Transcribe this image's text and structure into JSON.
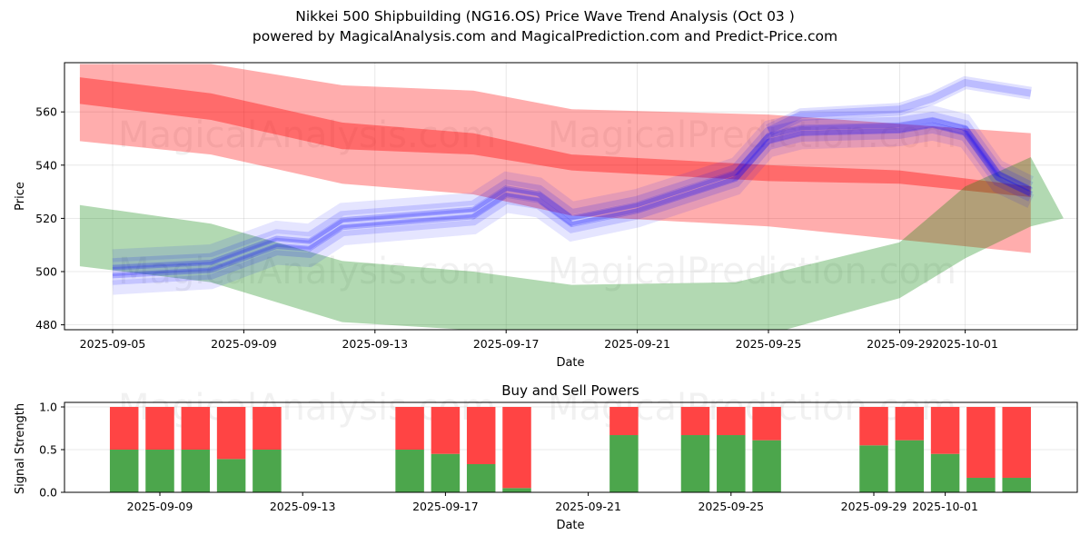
{
  "header": {
    "title": "Nikkei 500 Shipbuilding (NG16.OS) Price Wave Trend Analysis (Oct 03 )",
    "subtitle": "powered by MagicalAnalysis.com and MagicalPrediction.com and Predict-Price.com"
  },
  "watermarks": [
    "MagicalAnalysis.com",
    "MagicalPrediction.com"
  ],
  "chart_data": [
    {
      "type": "area",
      "title": "",
      "xlabel": "Date",
      "ylabel": "Price",
      "ylim": [
        478,
        578
      ],
      "xlim": [
        "2025-09-03.6",
        "2025-10-04.8"
      ],
      "x_ticks": [
        "2025-09-05",
        "2025-09-09",
        "2025-09-13",
        "2025-09-17",
        "2025-09-21",
        "2025-09-25",
        "2025-09-29",
        "2025-10-01"
      ],
      "y_ticks": [
        480,
        500,
        520,
        540,
        560
      ],
      "grid": true,
      "colors": {
        "red": "#ff0000",
        "green": "#008000",
        "blue": "#0000ff"
      },
      "bands": [
        {
          "name": "red-outer-band",
          "color": "#ff0000",
          "opacity": 0.32,
          "x": [
            "2025-09-04",
            "2025-09-08",
            "2025-09-12",
            "2025-09-16",
            "2025-09-19",
            "2025-09-25",
            "2025-10-03"
          ],
          "upper": [
            578,
            578,
            570,
            568,
            561,
            559,
            552
          ],
          "lower": [
            549,
            544,
            533,
            529,
            521,
            517,
            507
          ]
        },
        {
          "name": "red-inner-band",
          "color": "#ff0000",
          "opacity": 0.38,
          "x": [
            "2025-09-04",
            "2025-09-08",
            "2025-09-12",
            "2025-09-16",
            "2025-09-19",
            "2025-09-25",
            "2025-09-29",
            "2025-10-03"
          ],
          "upper": [
            573,
            567,
            556,
            552,
            544,
            540,
            538,
            532
          ],
          "lower": [
            563,
            557,
            546,
            544,
            538,
            534,
            533,
            528
          ]
        },
        {
          "name": "green-band",
          "color": "#008000",
          "opacity": 0.3,
          "x": [
            "2025-09-04",
            "2025-09-08",
            "2025-09-12",
            "2025-09-16",
            "2025-09-19",
            "2025-09-24",
            "2025-09-29",
            "2025-10-01",
            "2025-10-03",
            "2025-10-04"
          ],
          "upper": [
            525,
            518,
            504,
            500,
            495,
            496,
            511,
            532,
            543,
            520
          ],
          "lower": [
            502,
            496,
            481,
            478,
            475,
            473,
            490,
            505,
            517,
            520
          ]
        }
      ],
      "series": [
        {
          "name": "blue-wave-main",
          "color": "#0000ff",
          "x": [
            "2025-09-05",
            "2025-09-08",
            "2025-09-10",
            "2025-09-11",
            "2025-09-12",
            "2025-09-16",
            "2025-09-17",
            "2025-09-18",
            "2025-09-19",
            "2025-09-21",
            "2025-09-24",
            "2025-09-25",
            "2025-09-26",
            "2025-09-29",
            "2025-09-30",
            "2025-10-01",
            "2025-10-02",
            "2025-10-03"
          ],
          "values": [
            500,
            502,
            511,
            510,
            518,
            522,
            530,
            528,
            519,
            524,
            536,
            550,
            553,
            554,
            556,
            553,
            536,
            530
          ]
        },
        {
          "name": "blue-wave-upper",
          "color": "#0000ff",
          "x": [
            "2025-09-25",
            "2025-09-26",
            "2025-09-29",
            "2025-09-30",
            "2025-10-01",
            "2025-10-03"
          ],
          "values": [
            553,
            559,
            561,
            565,
            571,
            567
          ]
        }
      ]
    },
    {
      "type": "bar",
      "title": "Buy and Sell Powers",
      "xlabel": "Date",
      "ylabel": "Signal Strength",
      "ylim": [
        0,
        1.05
      ],
      "x_ticks": [
        "2025-09-09",
        "2025-09-13",
        "2025-09-17",
        "2025-09-21",
        "2025-09-25",
        "2025-09-29",
        "2025-10-01"
      ],
      "y_ticks": [
        "0.0",
        "0.5",
        "1.0"
      ],
      "grid": true,
      "colors": {
        "buy": "#4ca64c",
        "sell": "#ff4444"
      },
      "categories": [
        "2025-09-08",
        "2025-09-09",
        "2025-09-10",
        "2025-09-11",
        "2025-09-12",
        "2025-09-16",
        "2025-09-17",
        "2025-09-18",
        "2025-09-19",
        "2025-09-22",
        "2025-09-24",
        "2025-09-25",
        "2025-09-26",
        "2025-09-29",
        "2025-09-30",
        "2025-10-01",
        "2025-10-02",
        "2025-10-03"
      ],
      "series": [
        {
          "name": "Buy",
          "values": [
            0.5,
            0.5,
            0.5,
            0.39,
            0.5,
            0.5,
            0.45,
            0.33,
            0.05,
            0.67,
            0.67,
            0.67,
            0.61,
            0.55,
            0.61,
            0.45,
            0.17,
            0.17
          ]
        },
        {
          "name": "Sell",
          "values": [
            0.5,
            0.5,
            0.5,
            0.61,
            0.5,
            0.5,
            0.55,
            0.67,
            0.95,
            0.33,
            0.33,
            0.33,
            0.39,
            0.45,
            0.39,
            0.55,
            0.83,
            0.83
          ]
        }
      ]
    }
  ]
}
